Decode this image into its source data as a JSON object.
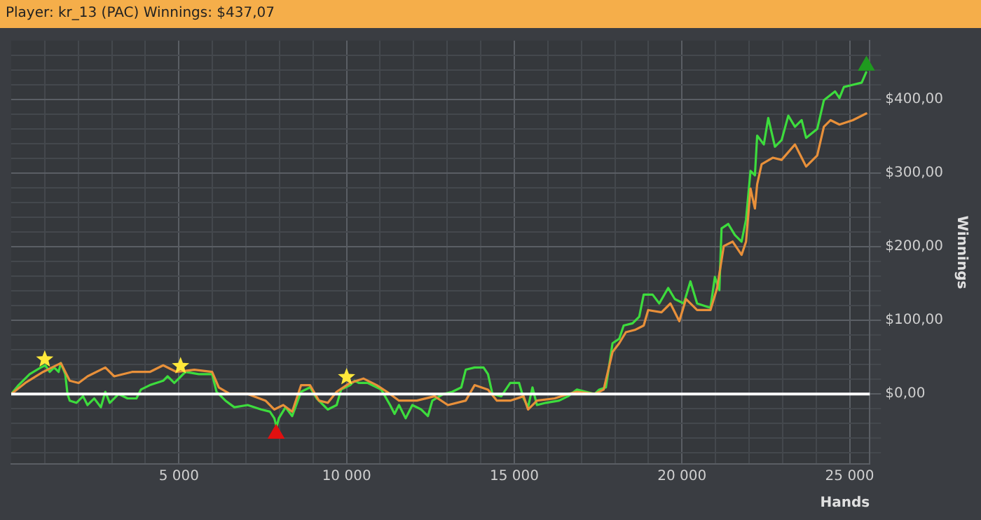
{
  "chart_data": {
    "type": "line",
    "title": "Player: kr_13 (PAC) Winnings: $437,07",
    "xlabel": "Hands",
    "ylabel": "Winnings",
    "xlim": [
      0,
      25600
    ],
    "xticks": [
      {
        "value": 1000,
        "label": null
      },
      {
        "value": 2000,
        "label": null
      },
      {
        "value": 3000,
        "label": null
      },
      {
        "value": 4000,
        "label": null
      },
      {
        "value": 5000,
        "label": "5 000"
      },
      {
        "value": 6000,
        "label": null
      },
      {
        "value": 7000,
        "label": null
      },
      {
        "value": 8000,
        "label": null
      },
      {
        "value": 9000,
        "label": null
      },
      {
        "value": 10000,
        "label": "10 000"
      },
      {
        "value": 11000,
        "label": null
      },
      {
        "value": 12000,
        "label": null
      },
      {
        "value": 13000,
        "label": null
      },
      {
        "value": 14000,
        "label": null
      },
      {
        "value": 15000,
        "label": "15 000"
      },
      {
        "value": 16000,
        "label": null
      },
      {
        "value": 17000,
        "label": null
      },
      {
        "value": 18000,
        "label": null
      },
      {
        "value": 19000,
        "label": null
      },
      {
        "value": 20000,
        "label": "20 000"
      },
      {
        "value": 21000,
        "label": null
      },
      {
        "value": 22000,
        "label": null
      },
      {
        "value": 23000,
        "label": null
      },
      {
        "value": 24000,
        "label": null
      },
      {
        "value": 25000,
        "label": "25 000"
      }
    ],
    "ylim": [
      -95,
      480
    ],
    "yticks": [
      {
        "value": -80,
        "label": null
      },
      {
        "value": -60,
        "label": null
      },
      {
        "value": -40,
        "label": null
      },
      {
        "value": -20,
        "label": null
      },
      {
        "value": 0,
        "label": "$0,00"
      },
      {
        "value": 20,
        "label": null
      },
      {
        "value": 40,
        "label": null
      },
      {
        "value": 60,
        "label": null
      },
      {
        "value": 80,
        "label": null
      },
      {
        "value": 100,
        "label": "$100,00"
      },
      {
        "value": 120,
        "label": null
      },
      {
        "value": 140,
        "label": null
      },
      {
        "value": 160,
        "label": null
      },
      {
        "value": 180,
        "label": null
      },
      {
        "value": 200,
        "label": "$200,00"
      },
      {
        "value": 220,
        "label": null
      },
      {
        "value": 240,
        "label": null
      },
      {
        "value": 260,
        "label": null
      },
      {
        "value": 280,
        "label": null
      },
      {
        "value": 300,
        "label": "$300,00"
      },
      {
        "value": 320,
        "label": null
      },
      {
        "value": 340,
        "label": null
      },
      {
        "value": 360,
        "label": null
      },
      {
        "value": 380,
        "label": null
      },
      {
        "value": 400,
        "label": "$400,00"
      },
      {
        "value": 420,
        "label": null
      },
      {
        "value": 440,
        "label": null
      },
      {
        "value": 460,
        "label": null
      }
    ],
    "grid": true,
    "legend": false,
    "marker": "none",
    "line_style": "solid",
    "ref_lines": [
      {
        "axis": "y",
        "value": 0,
        "color": "#ffffff"
      }
    ],
    "series": [
      {
        "color": "#e8903a",
        "x": [
          0,
          418,
          949,
          1479,
          1745,
          2010,
          2275,
          2806,
          3071,
          3602,
          4133,
          4531,
          4929,
          5459,
          5990,
          6189,
          6521,
          7051,
          7582,
          7846,
          8112,
          8378,
          8643,
          8909,
          9174,
          9440,
          9704,
          10103,
          10501,
          10899,
          11297,
          11562,
          12093,
          12623,
          13021,
          13552,
          13817,
          14216,
          14481,
          14879,
          15277,
          15410,
          15675,
          16205,
          16604,
          16869,
          17399,
          17665,
          17930,
          18129,
          18328,
          18594,
          18859,
          18992,
          19390,
          19655,
          19920,
          20119,
          20451,
          20849,
          21048,
          21247,
          21512,
          21777,
          21910,
          22043,
          22175,
          22242,
          22374,
          22706,
          22971,
          23369,
          23568,
          23701,
          24032,
          24231,
          24430,
          24695,
          25094,
          25492
        ],
        "values": [
          0,
          15,
          30,
          42,
          18,
          15,
          24,
          36,
          24,
          30,
          30,
          39,
          30,
          33,
          30,
          9,
          0,
          0,
          -9,
          -21,
          -15,
          -24,
          12,
          12,
          -9,
          -12,
          3,
          15,
          21,
          12,
          0,
          -9,
          -9,
          -3,
          -15,
          -9,
          12,
          6,
          -9,
          -9,
          -3,
          -21,
          -9,
          -6,
          0,
          3,
          0,
          6,
          57,
          69,
          84,
          87,
          93,
          114,
          111,
          123,
          99,
          129,
          114,
          114,
          144,
          201,
          207,
          189,
          207,
          279,
          252,
          285,
          312,
          321,
          318,
          339,
          321,
          309,
          324,
          363,
          372,
          366,
          372,
          381
        ]
      },
      {
        "color": "#3ddc3d",
        "x": [
          0,
          219,
          550,
          882,
          1015,
          1148,
          1280,
          1413,
          1479,
          1612,
          1678,
          1745,
          1943,
          2143,
          2275,
          2474,
          2673,
          2806,
          2938,
          3204,
          3469,
          3734,
          3867,
          4133,
          4531,
          4663,
          4862,
          5061,
          5194,
          5592,
          5990,
          6122,
          6388,
          6653,
          7051,
          7449,
          7714,
          7846,
          7913,
          7979,
          8179,
          8378,
          8643,
          8909,
          9108,
          9440,
          9704,
          9837,
          10103,
          10236,
          10368,
          10634,
          11032,
          11297,
          11430,
          11562,
          11761,
          11960,
          12225,
          12424,
          12557,
          12889,
          13154,
          13420,
          13552,
          13817,
          14083,
          14216,
          14348,
          14613,
          14879,
          15144,
          15277,
          15410,
          15542,
          15675,
          15940,
          16338,
          16604,
          16869,
          17134,
          17399,
          17532,
          17731,
          17930,
          18129,
          18262,
          18527,
          18726,
          18859,
          19124,
          19323,
          19588,
          19787,
          20053,
          20252,
          20451,
          20849,
          20981,
          21114,
          21180,
          21379,
          21578,
          21777,
          21910,
          22043,
          22175,
          22242,
          22441,
          22573,
          22772,
          22971,
          23170,
          23369,
          23568,
          23701,
          24032,
          24231,
          24563,
          24695,
          24828,
          25094,
          25359,
          25492
        ],
        "values": [
          0,
          12,
          27,
          36,
          39,
          30,
          36,
          30,
          42,
          27,
          0,
          -9,
          -12,
          -3,
          -15,
          -6,
          -18,
          3,
          -12,
          0,
          -6,
          -6,
          6,
          12,
          18,
          24,
          15,
          24,
          30,
          27,
          27,
          3,
          -9,
          -18,
          -15,
          -21,
          -24,
          -33,
          -45,
          -33,
          -18,
          -30,
          3,
          9,
          -6,
          -21,
          -15,
          6,
          12,
          18,
          15,
          15,
          6,
          -15,
          -27,
          -15,
          -33,
          -15,
          -21,
          -30,
          -9,
          0,
          3,
          9,
          33,
          36,
          36,
          27,
          0,
          -3,
          15,
          15,
          -6,
          -18,
          9,
          -15,
          -12,
          -9,
          -3,
          6,
          3,
          0,
          6,
          9,
          69,
          75,
          93,
          96,
          105,
          135,
          135,
          123,
          144,
          129,
          123,
          153,
          123,
          117,
          159,
          141,
          225,
          231,
          216,
          207,
          237,
          303,
          297,
          351,
          339,
          375,
          336,
          345,
          378,
          363,
          372,
          348,
          360,
          399,
          411,
          402,
          417,
          420,
          423,
          437
        ]
      },
      {
        "type": "scatter",
        "marker": "star",
        "color": "#ffe83a",
        "x": [
          1000,
          5050,
          10000
        ],
        "values": [
          47,
          38,
          23
        ]
      },
      {
        "type": "scatter",
        "marker": "triangle",
        "color": "#e01010",
        "x": [
          7900
        ],
        "values": [
          -54
        ]
      },
      {
        "type": "scatter",
        "marker": "triangle",
        "color": "#1f9a1f",
        "x": [
          25500
        ],
        "values": [
          446
        ]
      }
    ]
  }
}
